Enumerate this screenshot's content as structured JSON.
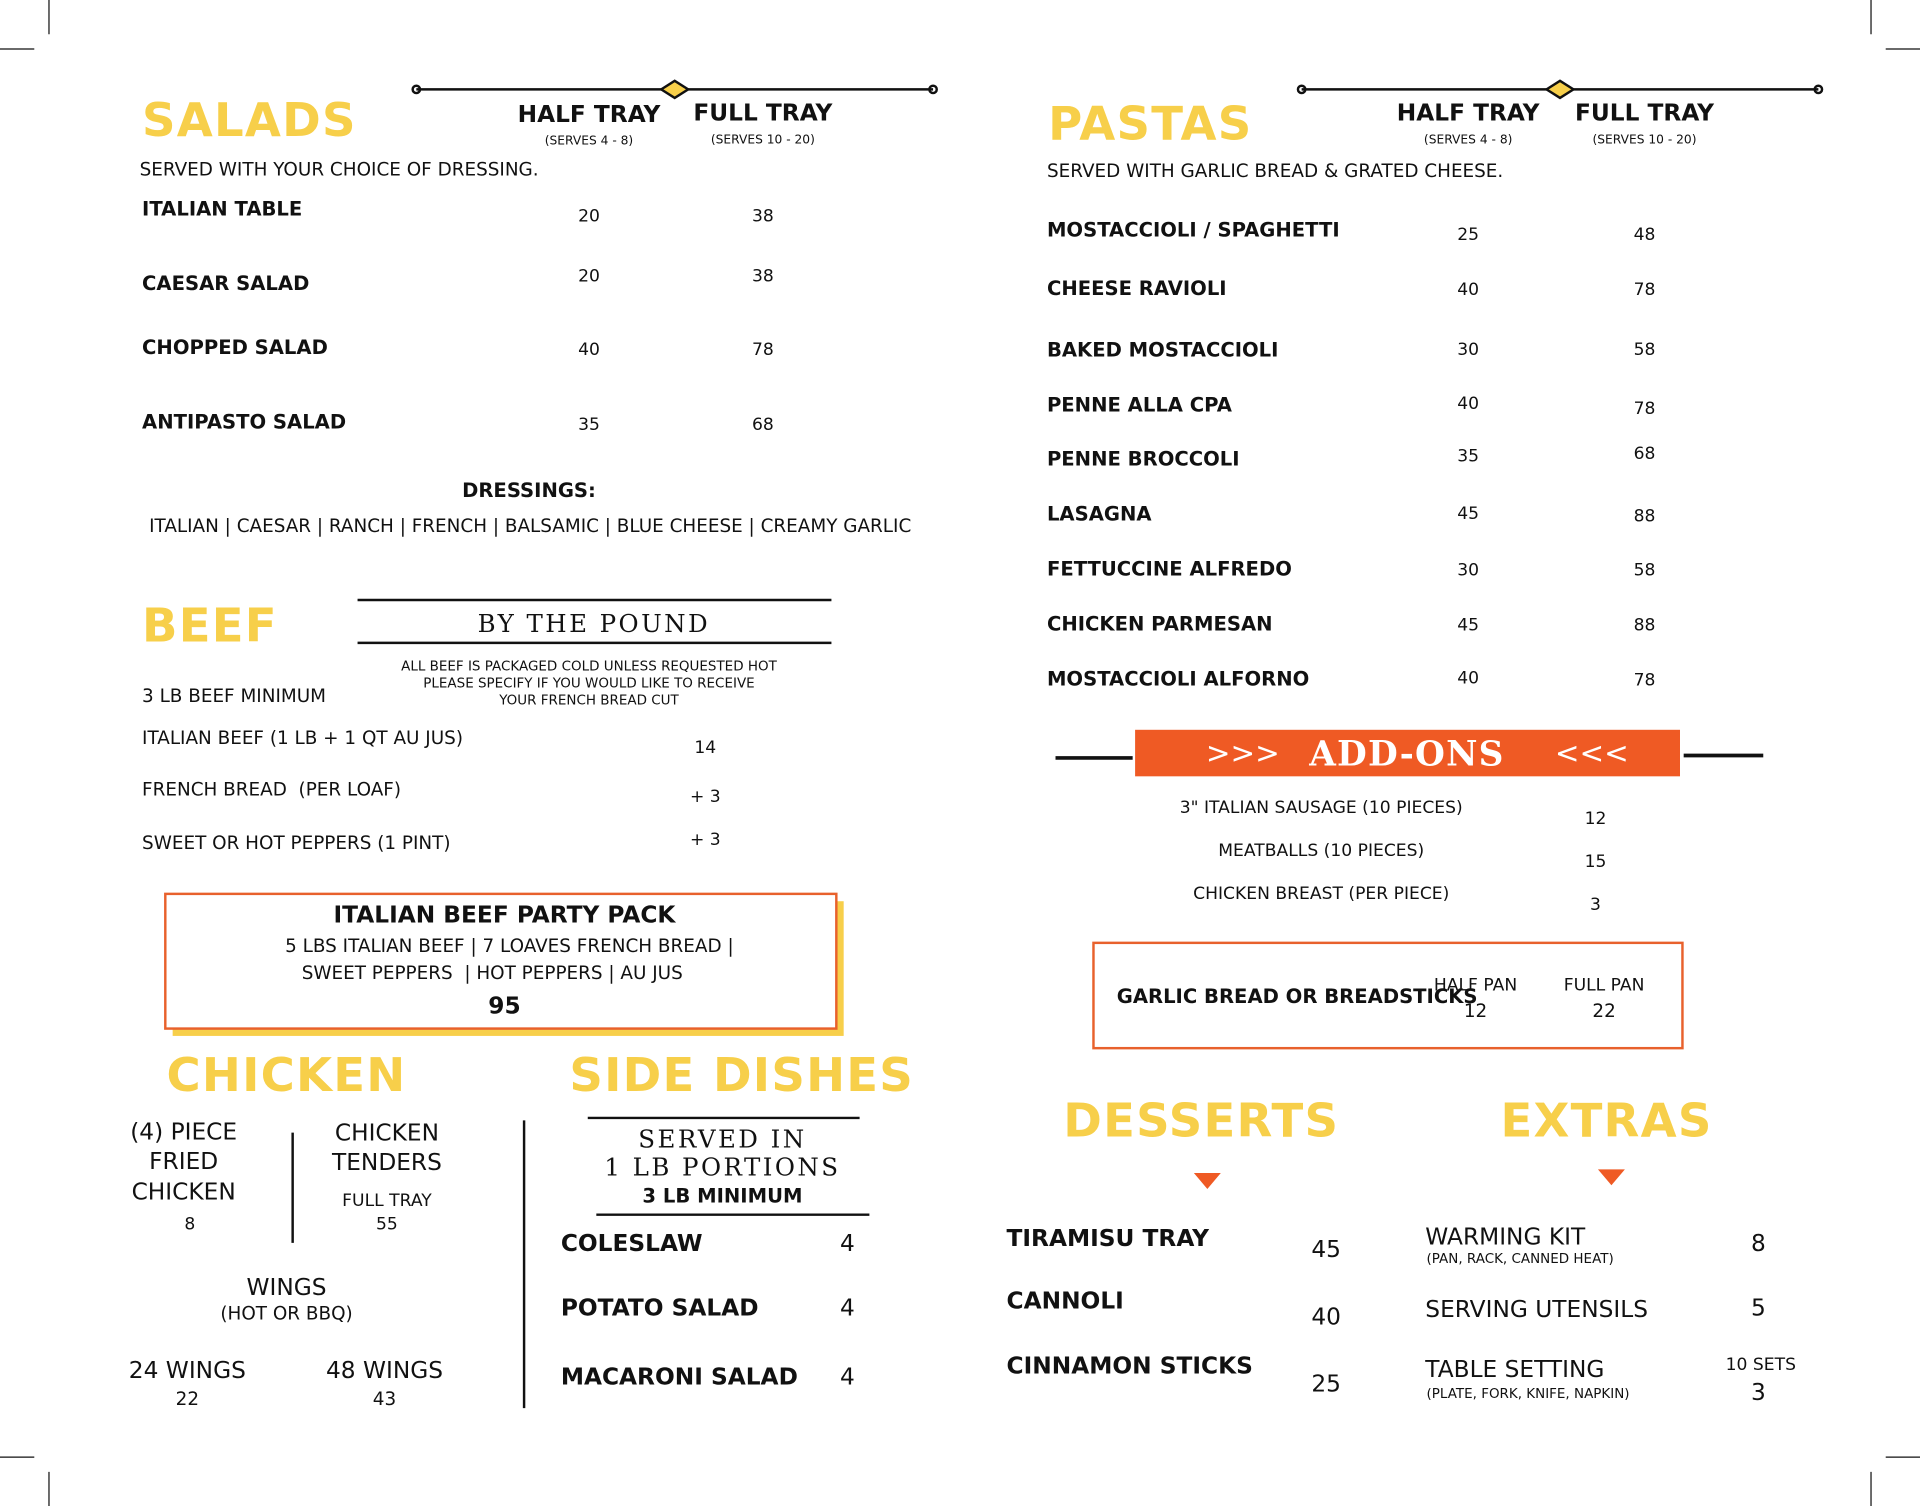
{
  "salads": {
    "title": "SALADS",
    "half_tray": "HALF TRAY",
    "half_serves": "(SERVES 4 - 8)",
    "full_tray": "FULL TRAY",
    "full_serves": "(SERVES 10 - 20)",
    "note": "SERVED WITH YOUR CHOICE OF DRESSING.",
    "items": [
      {
        "name": "ITALIAN TABLE",
        "half": 20,
        "full": 38
      },
      {
        "name": "CAESAR SALAD",
        "half": 20,
        "full": 38
      },
      {
        "name": "CHOPPED SALAD",
        "half": 40,
        "full": 78
      },
      {
        "name": "ANTIPASTO SALAD",
        "half": 35,
        "full": 68
      }
    ],
    "dressings_title": "DRESSINGS:",
    "dressings": "ITALIAN | CAESAR | RANCH | FRENCH | BALSAMIC | BLUE CHEESE | CREAMY GARLIC"
  },
  "beef": {
    "title": "BEEF",
    "banner": "BY THE POUND",
    "note": [
      "ALL BEEF IS PACKAGED COLD UNLESS REQUESTED HOT",
      "PLEASE SPECIFY IF YOU WOULD LIKE TO RECEIVE",
      "YOUR FRENCH BREAD CUT"
    ],
    "minimum": "3 LB BEEF MINIMUM",
    "items": [
      {
        "name": "ITALIAN BEEF (1 LB + 1 QT AU JUS)",
        "price": 14
      },
      {
        "name": "FRENCH BREAD  (PER LOAF)",
        "price": "+ 3"
      },
      {
        "name": "SWEET OR HOT PEPPERS (1 PINT)",
        "price": "+ 3"
      }
    ]
  },
  "party_pack": {
    "title": "ITALIAN BEEF PARTY PACK",
    "lines": [
      "5 LBS ITALIAN BEEF | 7 LOAVES FRENCH BREAD |",
      "SWEET PEPPERS  | HOT PEPPERS | AU JUS"
    ],
    "price": 95
  },
  "chicken": {
    "title": "CHICKEN",
    "fried": {
      "name": [
        "(4) PIECE",
        "FRIED",
        "CHICKEN"
      ],
      "price": 8
    },
    "tenders": {
      "name": [
        "CHICKEN",
        "TENDERS"
      ],
      "size": "FULL TRAY",
      "price": 55
    },
    "wings": {
      "name": "WINGS",
      "note": "(HOT OR BBQ)",
      "options": [
        {
          "name": "24 WINGS",
          "price": 22
        },
        {
          "name": "48 WINGS",
          "price": 43
        }
      ]
    }
  },
  "side_dishes": {
    "title": "SIDE DISHES",
    "banner": [
      "SERVED IN",
      "1 LB PORTIONS"
    ],
    "minimum": "3 LB MINIMUM",
    "items": [
      {
        "name": "COLESLAW",
        "price": 4
      },
      {
        "name": "POTATO SALAD",
        "price": 4
      },
      {
        "name": "MACARONI SALAD",
        "price": 4
      }
    ]
  },
  "pastas": {
    "title": "PASTAS",
    "half_tray": "HALF TRAY",
    "half_serves": "(SERVES 4 - 8)",
    "full_tray": "FULL TRAY",
    "full_serves": "(SERVES 10 - 20)",
    "note": "SERVED WITH GARLIC BREAD & GRATED CHEESE.",
    "items": [
      {
        "name": "MOSTACCIOLI / SPAGHETTI",
        "half": 25,
        "full": 48
      },
      {
        "name": "CHEESE RAVIOLI",
        "half": 40,
        "full": 78
      },
      {
        "name": "BAKED MOSTACCIOLI",
        "half": 30,
        "full": 58
      },
      {
        "name": "PENNE ALLA CPA",
        "half": 40,
        "full": 78
      },
      {
        "name": "PENNE BROCCOLI",
        "half": 35,
        "full": 68
      },
      {
        "name": "LASAGNA",
        "half": 45,
        "full": 88
      },
      {
        "name": "FETTUCCINE ALFREDO",
        "half": 30,
        "full": 58
      },
      {
        "name": "CHICKEN PARMESAN",
        "half": 45,
        "full": 88
      },
      {
        "name": "MOSTACCIOLI ALFORNO",
        "half": 40,
        "full": 78
      }
    ]
  },
  "add_ons": {
    "prefix": ">>>",
    "title": "ADD-ONS",
    "suffix": "<<<",
    "items": [
      {
        "name": "3\" ITALIAN SAUSAGE (10 PIECES)",
        "price": 12
      },
      {
        "name": "MEATBALLS (10 PIECES)",
        "price": 15
      },
      {
        "name": "CHICKEN BREAST (PER PIECE)",
        "price": 3
      }
    ],
    "garlic_bread": {
      "name": "GARLIC BREAD OR BREADSTICKS",
      "half": "HALF PAN",
      "half_price": 12,
      "full": "FULL PAN",
      "full_price": 22
    }
  },
  "desserts": {
    "title": "DESSERTS",
    "items": [
      {
        "name": "TIRAMISU TRAY",
        "price": 45
      },
      {
        "name": "CANNOLI",
        "price": 40
      },
      {
        "name": "CINNAMON STICKS",
        "price": 25
      }
    ]
  },
  "extras": {
    "title": "EXTRAS",
    "items": [
      {
        "name": "WARMING KIT",
        "note": "(PAN, RACK, CANNED HEAT)",
        "price": 8
      },
      {
        "name": "SERVING UTENSILS",
        "price": 5
      },
      {
        "name": "TABLE SETTING",
        "note": "(PLATE, FORK, KNIFE, NAPKIN)",
        "qty": "10 SETS",
        "price": 3
      }
    ]
  }
}
